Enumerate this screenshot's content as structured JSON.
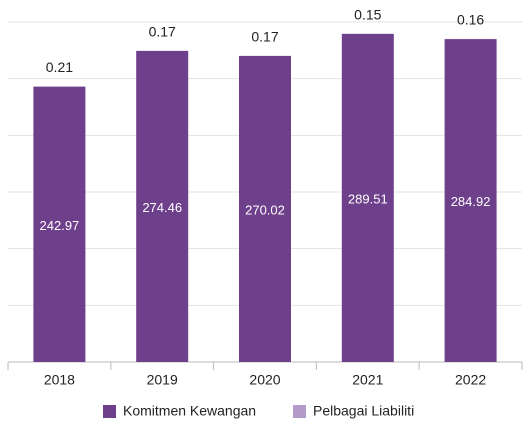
{
  "chart_data": {
    "type": "stacked_bar",
    "categories": [
      "2018",
      "2019",
      "2020",
      "2021",
      "2022"
    ],
    "series": [
      {
        "name": "Komitmen Kewangan",
        "color": "#6e3f8b",
        "values": [
          242.97,
          274.46,
          270.02,
          289.51,
          284.92
        ]
      },
      {
        "name": "Pelbagai Liabiliti",
        "color": "#b39bc9",
        "values": [
          0.21,
          0.17,
          0.17,
          0.15,
          0.16
        ]
      }
    ],
    "ylim": [
      0,
      300
    ],
    "yticks": [
      0,
      50,
      100,
      150,
      200,
      250,
      300
    ],
    "grid": true,
    "legend": "bottom"
  }
}
